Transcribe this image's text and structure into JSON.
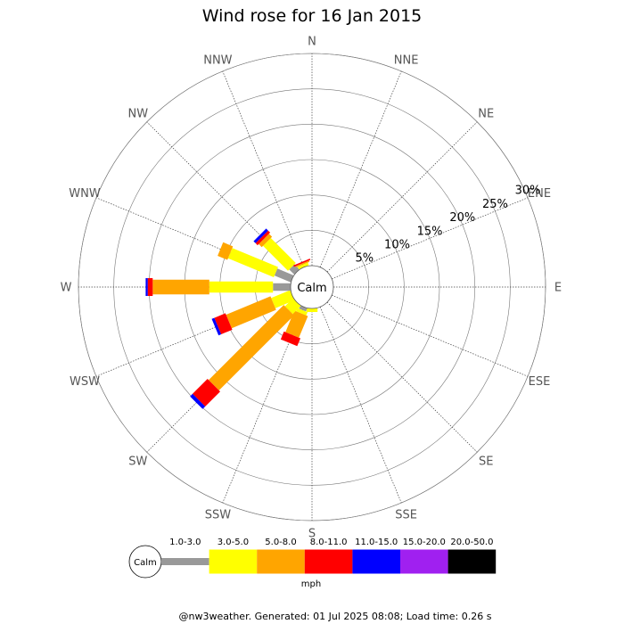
{
  "chart_data": {
    "type": "wind-rose",
    "title": "Wind rose for 16 Jan 2015",
    "directions": [
      "N",
      "NNE",
      "NE",
      "ENE",
      "E",
      "ESE",
      "SE",
      "SSE",
      "S",
      "SSW",
      "SW",
      "WSW",
      "W",
      "WNW",
      "NW",
      "NNW"
    ],
    "radial_ticks": [
      5,
      10,
      15,
      20,
      25,
      30
    ],
    "radial_tick_labels": [
      "5%",
      "10%",
      "15%",
      "20%",
      "25%",
      "30%"
    ],
    "calm_label": "Calm",
    "speed_bins": [
      "1.0-3.0",
      "3.0-5.0",
      "5.0-8.0",
      "8.0-11.0",
      "11.0-15.0",
      "15.0-20.0",
      "20.0-50.0"
    ],
    "bin_colors": [
      "#999999",
      "#ffff00",
      "#ffa500",
      "#ff0000",
      "#0000ff",
      "#a020f0",
      "#000000"
    ],
    "unit": "mph",
    "series": [
      {
        "direction": "N",
        "values": [
          0,
          0,
          0,
          0,
          0,
          0,
          0
        ]
      },
      {
        "direction": "NNE",
        "values": [
          0,
          0,
          0,
          0,
          0,
          0,
          0
        ]
      },
      {
        "direction": "NE",
        "values": [
          0,
          0,
          0,
          0,
          0,
          0,
          0
        ]
      },
      {
        "direction": "ENE",
        "values": [
          0,
          0,
          0,
          0,
          0,
          0,
          0
        ]
      },
      {
        "direction": "E",
        "values": [
          0,
          0,
          0,
          0,
          0,
          0,
          0
        ]
      },
      {
        "direction": "ESE",
        "values": [
          0,
          0,
          0,
          0,
          0,
          0,
          0
        ]
      },
      {
        "direction": "SE",
        "values": [
          0,
          0,
          0,
          0,
          0,
          0,
          0
        ]
      },
      {
        "direction": "SSE",
        "values": [
          0,
          0,
          0,
          0,
          0,
          0,
          0
        ]
      },
      {
        "direction": "S",
        "values": [
          0.0,
          0.5,
          0.0,
          0.0,
          0.0,
          0.0,
          0.0
        ]
      },
      {
        "direction": "SSW",
        "values": [
          0.5,
          0.5,
          3.3,
          1.2,
          0.0,
          0.0,
          0.0
        ]
      },
      {
        "direction": "SW",
        "values": [
          0.0,
          1.6,
          15.0,
          3.0,
          0.5,
          0.0,
          0.0
        ]
      },
      {
        "direction": "WSW",
        "values": [
          0.0,
          2.9,
          6.8,
          1.7,
          0.4,
          0.0,
          0.0
        ]
      },
      {
        "direction": "W",
        "values": [
          2.5,
          9.0,
          8.0,
          0.7,
          0.3,
          0.0,
          0.0
        ]
      },
      {
        "direction": "WNW",
        "values": [
          2.5,
          7.0,
          1.5,
          0.0,
          0.0,
          0.0,
          0.0
        ]
      },
      {
        "direction": "NW",
        "values": [
          1.0,
          5.0,
          0.6,
          0.4,
          0.4,
          0.0,
          0.0
        ]
      },
      {
        "direction": "NNW",
        "values": [
          0.0,
          0.4,
          0.2,
          0.2,
          0.0,
          0.0,
          0.0
        ]
      }
    ]
  },
  "footer": "@nw3weather. Generated: 01 Jul 2025 08:08; Load time: 0.26 s"
}
